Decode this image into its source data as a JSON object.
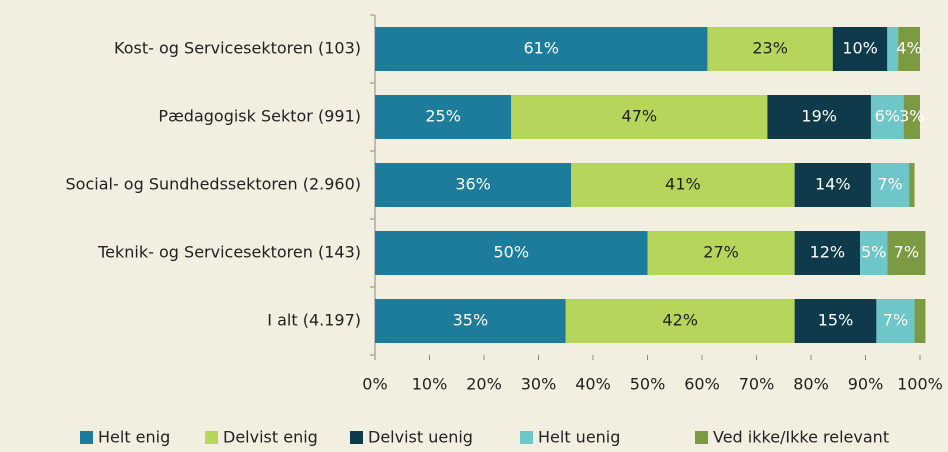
{
  "chart_data": {
    "type": "stacked_barh",
    "categories": [
      "Kost- og Servicesektoren (103)",
      "Pædagogisk Sektor (991)",
      "Social- og Sundhedssektoren (2.960)",
      "Teknik- og Servicesektoren (143)",
      "I alt (4.197)"
    ],
    "series": [
      {
        "name": "Helt enig",
        "color": "#1d7c9b",
        "values": [
          61,
          25,
          36,
          50,
          35
        ],
        "value_labels": [
          "61%",
          "25%",
          "36%",
          "50%",
          "35%"
        ]
      },
      {
        "name": "Delvist enig",
        "color": "#b6d65b",
        "values": [
          23,
          47,
          41,
          27,
          42
        ],
        "value_labels": [
          "23%",
          "47%",
          "41%",
          "27%",
          "42%"
        ]
      },
      {
        "name": "Delvist uenig",
        "color": "#0e3a4b",
        "values": [
          10,
          19,
          14,
          12,
          15
        ],
        "value_labels": [
          "10%",
          "19%",
          "14%",
          "12%",
          "15%"
        ]
      },
      {
        "name": "Helt uenig",
        "color": "#6ec6c9",
        "values": [
          2,
          6,
          7,
          5,
          7
        ],
        "value_labels": [
          null,
          "6%",
          "7%",
          "5%",
          "7%"
        ]
      },
      {
        "name": "Ved ikke/Ikke relevant",
        "color": "#7b9a41",
        "values": [
          4,
          3,
          1,
          7,
          2
        ],
        "value_labels": [
          "4%",
          "3%",
          null,
          "7%",
          null
        ]
      }
    ],
    "xlim": [
      0,
      100
    ],
    "xticks": [
      {
        "value": 0,
        "label": "0%"
      },
      {
        "value": 10,
        "label": "10%"
      },
      {
        "value": 20,
        "label": "20%"
      },
      {
        "value": 30,
        "label": "30%"
      },
      {
        "value": 40,
        "label": "40%"
      },
      {
        "value": 50,
        "label": "50%"
      },
      {
        "value": 60,
        "label": "60%"
      },
      {
        "value": 70,
        "label": "70%"
      },
      {
        "value": 80,
        "label": "80%"
      },
      {
        "value": 90,
        "label": "90%"
      },
      {
        "value": 100,
        "label": "100%"
      }
    ],
    "label_colors": [
      "#ffffff",
      "#222222",
      "#ffffff",
      "#ffffff",
      "#ffffff"
    ]
  }
}
